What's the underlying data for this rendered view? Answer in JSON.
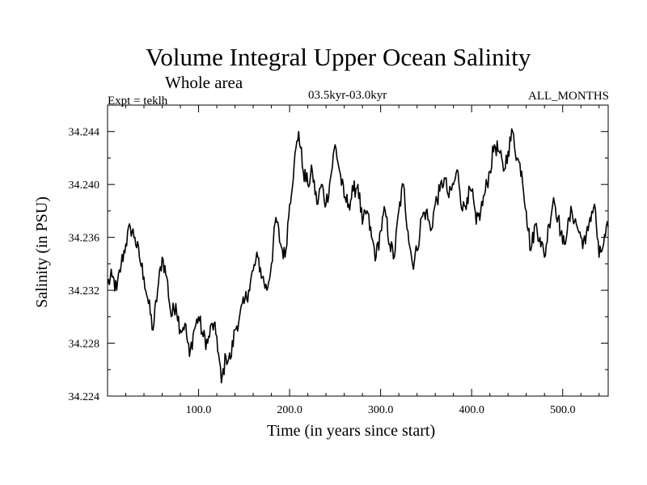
{
  "chart_data": {
    "type": "line",
    "title": "Volume Integral Upper Ocean Salinity",
    "subtitle": "Whole area",
    "experiment": "Expt = teklh",
    "period": "03.5kyr-03.0kyr",
    "months": "ALL_MONTHS",
    "xlabel": "Time (in years since start)",
    "ylabel": "Salinity (in PSU)",
    "xlim": [
      0,
      550
    ],
    "ylim": [
      34.224,
      34.246
    ],
    "x_ticks": [
      100,
      200,
      300,
      400,
      500
    ],
    "x_tick_labels": [
      "100.0",
      "200.0",
      "300.0",
      "400.0",
      "500.0"
    ],
    "y_ticks": [
      34.224,
      34.228,
      34.232,
      34.236,
      34.24,
      34.244
    ],
    "y_tick_labels": [
      "34.224",
      "34.228",
      "34.232",
      "34.236",
      "34.240",
      "34.244"
    ],
    "series": [
      {
        "name": "Salinity",
        "x": [
          0,
          5,
          10,
          15,
          20,
          25,
          30,
          35,
          40,
          45,
          50,
          55,
          60,
          65,
          70,
          75,
          80,
          85,
          90,
          95,
          100,
          105,
          110,
          115,
          120,
          125,
          130,
          135,
          140,
          145,
          150,
          155,
          160,
          165,
          170,
          175,
          180,
          185,
          190,
          195,
          200,
          205,
          210,
          215,
          220,
          225,
          230,
          235,
          240,
          245,
          250,
          255,
          260,
          265,
          270,
          275,
          280,
          285,
          290,
          295,
          300,
          305,
          310,
          315,
          320,
          325,
          330,
          335,
          340,
          345,
          350,
          355,
          360,
          365,
          370,
          375,
          380,
          385,
          390,
          395,
          400,
          405,
          410,
          415,
          420,
          425,
          430,
          435,
          440,
          445,
          450,
          455,
          460,
          465,
          470,
          475,
          480,
          485,
          490,
          495,
          500,
          505,
          510,
          515,
          520,
          525,
          530,
          535,
          540,
          545,
          550
        ],
        "values": [
          34.2325,
          34.233,
          34.232,
          34.234,
          34.2355,
          34.2368,
          34.236,
          34.2345,
          34.233,
          34.231,
          34.229,
          34.232,
          34.2345,
          34.233,
          34.23,
          34.231,
          34.229,
          34.2295,
          34.227,
          34.229,
          34.23,
          34.2285,
          34.228,
          34.2295,
          34.2285,
          34.225,
          34.227,
          34.2268,
          34.229,
          34.23,
          34.231,
          34.232,
          34.2335,
          34.2345,
          34.233,
          34.232,
          34.234,
          34.2375,
          34.2355,
          34.2345,
          34.2385,
          34.2415,
          34.244,
          34.241,
          34.24,
          34.241,
          34.2385,
          34.24,
          34.2385,
          34.2405,
          34.243,
          34.241,
          34.239,
          34.2385,
          34.2395,
          34.24,
          34.237,
          34.238,
          34.236,
          34.2345,
          34.2365,
          34.238,
          34.2355,
          34.2345,
          34.238,
          34.24,
          34.2365,
          34.234,
          34.235,
          34.2375,
          34.238,
          34.2365,
          34.2385,
          34.2395,
          34.2405,
          34.239,
          34.24,
          34.241,
          34.238,
          34.239,
          34.2395,
          34.237,
          34.238,
          34.2395,
          34.241,
          34.243,
          34.2425,
          34.241,
          34.2425,
          34.244,
          34.242,
          34.241,
          34.238,
          34.235,
          34.237,
          34.236,
          34.2345,
          34.237,
          34.239,
          34.2375,
          34.2355,
          34.2365,
          34.238,
          34.237,
          34.236,
          34.2355,
          34.2375,
          34.2385,
          34.2345,
          34.2355,
          34.2368
        ]
      }
    ]
  }
}
